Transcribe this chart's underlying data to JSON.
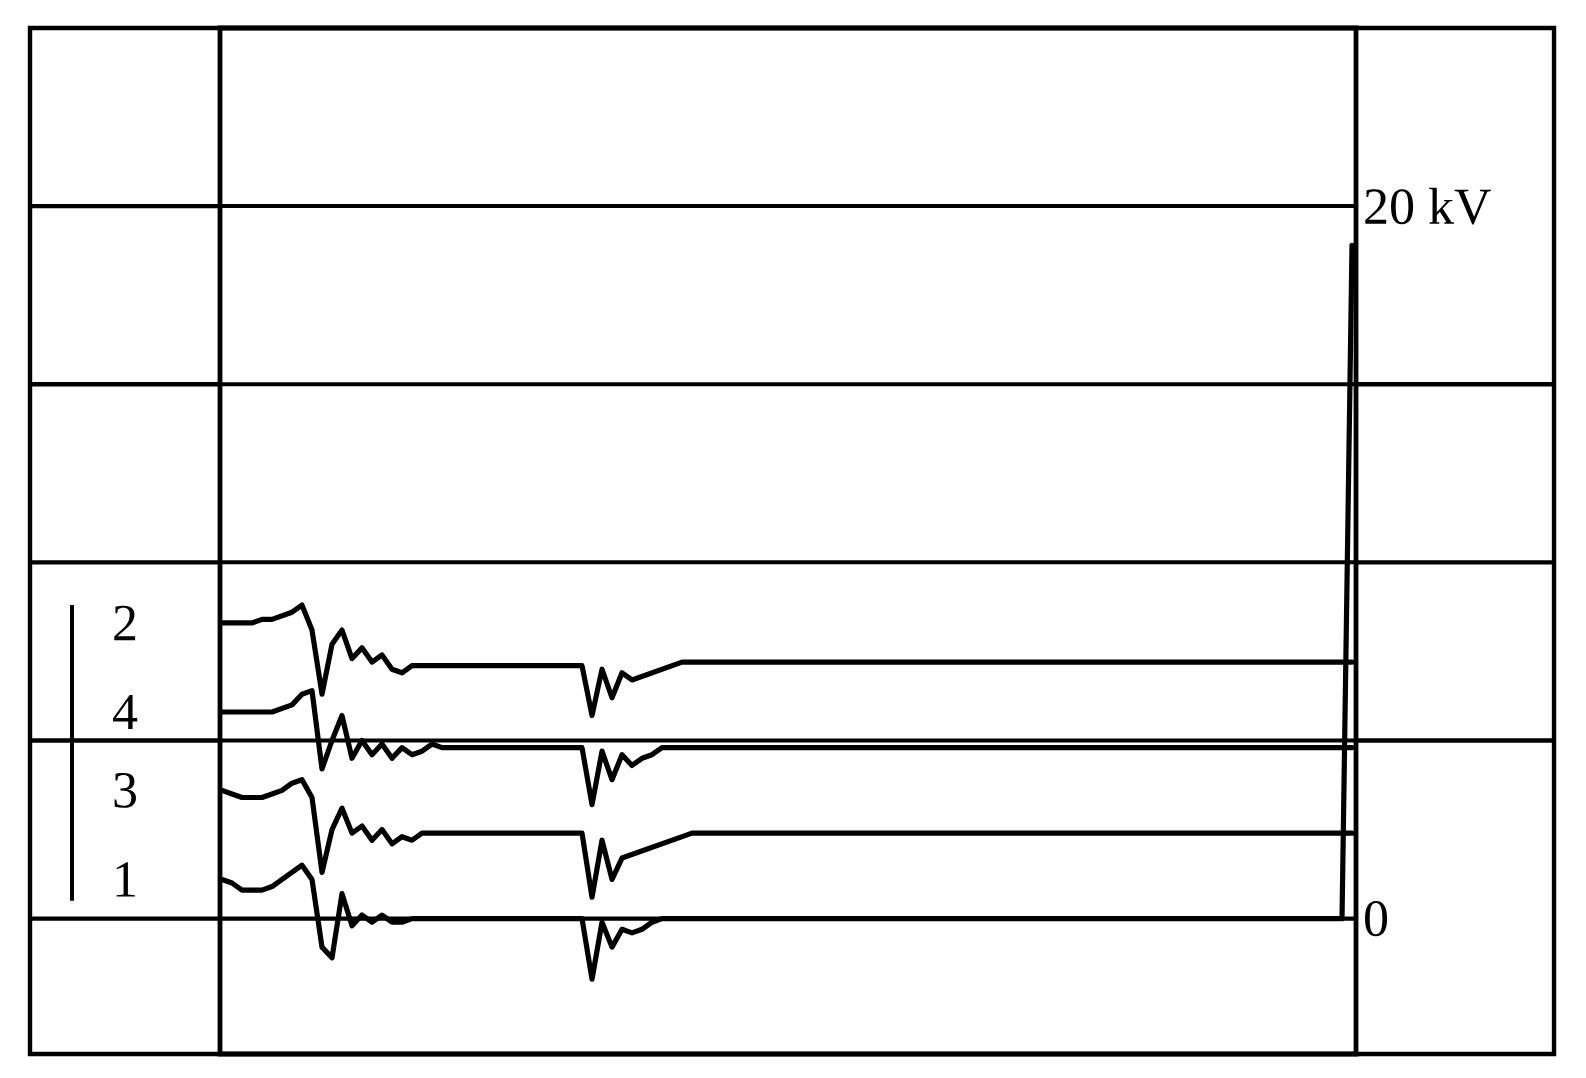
{
  "chart_data": {
    "type": "line",
    "categories": [
      null,
      null,
      null,
      null,
      null,
      null,
      null,
      null,
      null,
      null,
      null,
      null,
      null,
      null,
      null,
      null,
      null,
      null,
      null,
      null,
      null,
      null,
      null,
      null,
      null,
      null,
      null,
      null,
      null,
      null,
      null,
      null,
      null,
      null,
      null,
      null,
      null,
      null,
      null,
      null,
      null,
      null,
      null,
      null,
      null,
      null,
      null,
      null,
      null,
      null,
      null,
      null,
      null,
      null,
      null,
      null,
      null,
      null,
      null,
      null,
      null,
      null,
      null,
      null,
      null,
      null,
      null,
      null,
      null,
      null,
      null,
      null,
      null,
      null,
      null,
      null,
      null,
      null,
      null,
      null,
      null,
      null,
      null,
      null,
      null,
      null,
      null,
      null,
      null,
      null,
      null,
      null,
      null,
      null,
      null,
      null,
      null,
      null,
      null,
      null,
      null,
      null,
      null,
      null,
      null,
      null,
      null,
      null,
      null,
      null,
      null,
      null,
      null,
      null
    ],
    "series": [
      {
        "name": "2",
        "color": "#000000",
        "values": [
          8.3,
          8.3,
          8.3,
          8.3,
          8.4,
          8.4,
          8.5,
          8.6,
          8.8,
          8.1,
          6.3,
          7.7,
          8.1,
          7.3,
          7.6,
          7.2,
          7.4,
          7.0,
          6.9,
          7.1,
          7.1,
          7.1,
          7.1,
          7.1,
          7.1,
          7.1,
          7.1,
          7.1,
          7.1,
          7.1,
          7.1,
          7.1,
          7.1,
          7.1,
          7.1,
          7.1,
          7.1,
          5.7,
          7.0,
          6.2,
          6.9,
          6.7,
          6.8,
          6.9,
          7.0,
          7.1,
          7.2,
          7.2,
          7.2,
          7.2,
          7.2,
          7.2,
          7.2,
          7.2,
          7.2,
          7.2,
          7.2,
          7.2,
          7.2,
          7.2,
          7.2,
          7.2,
          7.2,
          7.2,
          7.2,
          7.2,
          7.2,
          7.2,
          7.2,
          7.2,
          7.2,
          7.2,
          7.2,
          7.2,
          7.2,
          7.2,
          7.2,
          7.2,
          7.2,
          7.2,
          7.2,
          7.2,
          7.2,
          7.2,
          7.2,
          7.2,
          7.2,
          7.2,
          7.2,
          7.2,
          7.2,
          7.2,
          7.2,
          7.2,
          7.2,
          7.2,
          7.2,
          7.2,
          7.2,
          7.2,
          7.2,
          7.2,
          7.2,
          7.2,
          7.2,
          7.2,
          7.2,
          7.2,
          7.2,
          7.2,
          7.2,
          7.2,
          7.2,
          7.2
        ]
      },
      {
        "name": "4",
        "color": "#000000",
        "values": [
          5.8,
          5.8,
          5.8,
          5.8,
          5.8,
          5.8,
          5.9,
          6.0,
          6.3,
          6.4,
          4.2,
          5.0,
          5.7,
          4.5,
          5.0,
          4.6,
          4.9,
          4.5,
          4.8,
          4.6,
          4.7,
          4.9,
          4.8,
          4.8,
          4.8,
          4.8,
          4.8,
          4.8,
          4.8,
          4.8,
          4.8,
          4.8,
          4.8,
          4.8,
          4.8,
          4.8,
          4.8,
          3.2,
          4.7,
          3.9,
          4.6,
          4.3,
          4.5,
          4.6,
          4.8,
          4.8,
          4.8,
          4.8,
          4.8,
          4.8,
          4.8,
          4.8,
          4.8,
          4.8,
          4.8,
          4.8,
          4.8,
          4.8,
          4.8,
          4.8,
          4.8,
          4.8,
          4.8,
          4.8,
          4.8,
          4.8,
          4.8,
          4.8,
          4.8,
          4.8,
          4.8,
          4.8,
          4.8,
          4.8,
          4.8,
          4.8,
          4.8,
          4.8,
          4.8,
          4.8,
          4.8,
          4.8,
          4.8,
          4.8,
          4.8,
          4.8,
          4.8,
          4.8,
          4.8,
          4.8,
          4.8,
          4.8,
          4.8,
          4.8,
          4.8,
          4.8,
          4.8,
          4.8,
          4.8,
          4.8,
          4.8,
          4.8,
          4.8,
          4.8,
          4.8,
          4.8,
          4.8,
          4.8,
          4.8,
          4.8,
          4.8,
          4.8,
          4.8,
          4.8
        ]
      },
      {
        "name": "3",
        "color": "#000000",
        "values": [
          3.6,
          3.5,
          3.4,
          3.4,
          3.4,
          3.5,
          3.6,
          3.8,
          3.9,
          3.4,
          1.3,
          2.5,
          3.1,
          2.4,
          2.6,
          2.2,
          2.5,
          2.1,
          2.3,
          2.2,
          2.4,
          2.4,
          2.4,
          2.4,
          2.4,
          2.4,
          2.4,
          2.4,
          2.4,
          2.4,
          2.4,
          2.4,
          2.4,
          2.4,
          2.4,
          2.4,
          2.4,
          0.6,
          2.2,
          1.1,
          1.7,
          1.8,
          1.9,
          2.0,
          2.1,
          2.2,
          2.3,
          2.4,
          2.4,
          2.4,
          2.4,
          2.4,
          2.4,
          2.4,
          2.4,
          2.4,
          2.4,
          2.4,
          2.4,
          2.4,
          2.4,
          2.4,
          2.4,
          2.4,
          2.4,
          2.4,
          2.4,
          2.4,
          2.4,
          2.4,
          2.4,
          2.4,
          2.4,
          2.4,
          2.4,
          2.4,
          2.4,
          2.4,
          2.4,
          2.4,
          2.4,
          2.4,
          2.4,
          2.4,
          2.4,
          2.4,
          2.4,
          2.4,
          2.4,
          2.4,
          2.4,
          2.4,
          2.4,
          2.4,
          2.4,
          2.4,
          2.4,
          2.4,
          2.4,
          2.4,
          2.4,
          2.4,
          2.4,
          2.4,
          2.4,
          2.4,
          2.4,
          2.4,
          2.4,
          2.4,
          2.4,
          2.4,
          2.4,
          2.4
        ]
      },
      {
        "name": "1",
        "color": "#000000",
        "values": [
          1.1,
          1.0,
          0.8,
          0.8,
          0.8,
          0.9,
          1.1,
          1.3,
          1.5,
          1.1,
          -0.8,
          -1.1,
          0.7,
          -0.2,
          0.1,
          -0.1,
          0.1,
          -0.1,
          -0.1,
          0,
          0,
          0,
          0,
          0,
          0,
          0,
          0,
          0,
          0,
          0,
          0,
          0,
          0,
          0,
          0,
          0,
          0,
          -1.7,
          -0.1,
          -0.8,
          -0.3,
          -0.4,
          -0.3,
          -0.1,
          0,
          0,
          0,
          0,
          0,
          0,
          0,
          0,
          0,
          0,
          0,
          0,
          0,
          0,
          0,
          0,
          0,
          0,
          0,
          0,
          0,
          0,
          0,
          0,
          0,
          0,
          0,
          0,
          0,
          0,
          0,
          0,
          0,
          0,
          0,
          0,
          0,
          0,
          0,
          0,
          0,
          0,
          0,
          0,
          0,
          0,
          0,
          0,
          0,
          0,
          0,
          0,
          0,
          0,
          0,
          0,
          0,
          0,
          0,
          0,
          0,
          0,
          0,
          0,
          0,
          0,
          0,
          0,
          0,
          18.9
        ]
      }
    ],
    "ylim": [
      -3.8,
      25
    ],
    "yticks": [
      0,
      {
        "value": 5,
        "label": null
      },
      {
        "value": 10,
        "label": null
      },
      {
        "value": 15,
        "label": null
      },
      {
        "value": 20,
        "label": "20 kV"
      }
    ],
    "grid": "y",
    "legend": "left",
    "tick_labels": "y",
    "marker": "none",
    "line_style": "solid"
  }
}
